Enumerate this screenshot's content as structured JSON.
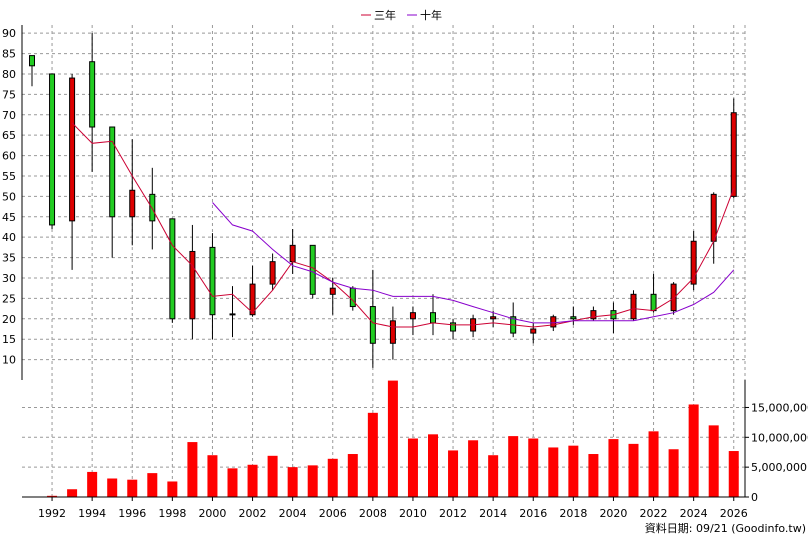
{
  "chart_data": {
    "type": "candlestick+bar",
    "legend": {
      "placement": "top-center",
      "items": [
        {
          "label": "三年",
          "color": "#cc0033"
        },
        {
          "label": "十年",
          "color": "#8800cc"
        }
      ]
    },
    "years": [
      1991,
      1992,
      1993,
      1994,
      1995,
      1996,
      1997,
      1998,
      1999,
      2000,
      2001,
      2002,
      2003,
      2004,
      2005,
      2006,
      2007,
      2008,
      2009,
      2010,
      2011,
      2012,
      2013,
      2014,
      2015,
      2016,
      2017,
      2018,
      2019,
      2020,
      2021,
      2022,
      2023,
      2024,
      2025,
      2026
    ],
    "price_axis": {
      "ticks": [
        10,
        15,
        20,
        25,
        30,
        35,
        40,
        45,
        50,
        55,
        60,
        65,
        70,
        75,
        80,
        85,
        90
      ],
      "range": [
        5,
        92
      ]
    },
    "volume_axis": {
      "ticks": [
        "0",
        "5,000,000",
        "10,000,000",
        "15,000,000"
      ],
      "tick_values": [
        0,
        5000000,
        10000000,
        15000000
      ],
      "range": [
        0,
        19600000
      ]
    },
    "x_tick_labels": [
      "1992",
      "1994",
      "1996",
      "1998",
      "2000",
      "2002",
      "2004",
      "2006",
      "2008",
      "2010",
      "2012",
      "2014",
      "2016",
      "2018",
      "2020",
      "2022",
      "2024",
      "2026"
    ],
    "candles": [
      {
        "year": 1991,
        "open": 82,
        "close": 84.5,
        "high": 84.5,
        "low": 77
      },
      {
        "year": 1992,
        "open": 43,
        "close": 80,
        "high": 80,
        "low": 42
      },
      {
        "year": 1993,
        "open": 79,
        "close": 44,
        "high": 80,
        "low": 32
      },
      {
        "year": 1994,
        "open": 67,
        "close": 83,
        "high": 90,
        "low": 56
      },
      {
        "year": 1995,
        "open": 45,
        "close": 67,
        "high": 67,
        "low": 35
      },
      {
        "year": 1996,
        "open": 51.5,
        "close": 45,
        "high": 64,
        "low": 38
      },
      {
        "year": 1997,
        "open": 44,
        "close": 50.5,
        "high": 57,
        "low": 37
      },
      {
        "year": 1998,
        "open": 20,
        "close": 44.5,
        "high": 44.5,
        "low": 19
      },
      {
        "year": 1999,
        "open": 36.5,
        "close": 20,
        "high": 43,
        "low": 15
      },
      {
        "year": 2000,
        "open": 21,
        "close": 37.5,
        "high": 41,
        "low": 15
      },
      {
        "year": 2001,
        "open": 21.2,
        "close": 21,
        "high": 28,
        "low": 15.5
      },
      {
        "year": 2002,
        "open": 28.5,
        "close": 21,
        "high": 33,
        "low": 20.5
      },
      {
        "year": 2003,
        "open": 34,
        "close": 28.5,
        "high": 36,
        "low": 27
      },
      {
        "year": 2004,
        "open": 38,
        "close": 34,
        "high": 42,
        "low": 31
      },
      {
        "year": 2005,
        "open": 26,
        "close": 38,
        "high": 38,
        "low": 25
      },
      {
        "year": 2006,
        "open": 27.5,
        "close": 26,
        "high": 30,
        "low": 21
      },
      {
        "year": 2007,
        "open": 23,
        "close": 27.5,
        "high": 28,
        "low": 22
      },
      {
        "year": 2008,
        "open": 14,
        "close": 23,
        "high": 32,
        "low": 8
      },
      {
        "year": 2009,
        "open": 19.5,
        "close": 14,
        "high": 23,
        "low": 10
      },
      {
        "year": 2010,
        "open": 21.5,
        "close": 20,
        "high": 23,
        "low": 16
      },
      {
        "year": 2011,
        "open": 19,
        "close": 21.5,
        "high": 26,
        "low": 16
      },
      {
        "year": 2012,
        "open": 17,
        "close": 19,
        "high": 20,
        "low": 15
      },
      {
        "year": 2013,
        "open": 20,
        "close": 17,
        "high": 21,
        "low": 15.5
      },
      {
        "year": 2014,
        "open": 20.5,
        "close": 20,
        "high": 22,
        "low": 18
      },
      {
        "year": 2015,
        "open": 16.5,
        "close": 20.5,
        "high": 24,
        "low": 15.5
      },
      {
        "year": 2016,
        "open": 17.5,
        "close": 16.5,
        "high": 19,
        "low": 14
      },
      {
        "year": 2017,
        "open": 20.5,
        "close": 18,
        "high": 21,
        "low": 17
      },
      {
        "year": 2018,
        "open": 20,
        "close": 20.5,
        "high": 23,
        "low": 18.5
      },
      {
        "year": 2019,
        "open": 22,
        "close": 20,
        "high": 23,
        "low": 19.5
      },
      {
        "year": 2020,
        "open": 20,
        "close": 22,
        "high": 24,
        "low": 16.5
      },
      {
        "year": 2021,
        "open": 26,
        "close": 20,
        "high": 27,
        "low": 19.5
      },
      {
        "year": 2022,
        "open": 22,
        "close": 26,
        "high": 31,
        "low": 21.5
      },
      {
        "year": 2023,
        "open": 28.5,
        "close": 22,
        "high": 29,
        "low": 21
      },
      {
        "year": 2024,
        "open": 39,
        "close": 28.5,
        "high": 41.5,
        "low": 27
      },
      {
        "year": 2025,
        "open": 50.5,
        "close": 39,
        "high": 51,
        "low": 33.5
      },
      {
        "year": 2026,
        "open": 70.5,
        "close": 50,
        "high": 74,
        "low": 49.5
      }
    ],
    "three_year_line": [
      {
        "year": 1992,
        "value": null
      },
      {
        "year": 1993,
        "value": 68
      },
      {
        "year": 1994,
        "value": 63
      },
      {
        "year": 1995,
        "value": 63.5
      },
      {
        "year": 1996,
        "value": 55
      },
      {
        "year": 1997,
        "value": 47
      },
      {
        "year": 1998,
        "value": 38
      },
      {
        "year": 1999,
        "value": 33
      },
      {
        "year": 2000,
        "value": 25.5
      },
      {
        "year": 2001,
        "value": 26
      },
      {
        "year": 2002,
        "value": 21.5
      },
      {
        "year": 2003,
        "value": 27
      },
      {
        "year": 2004,
        "value": 34
      },
      {
        "year": 2005,
        "value": 32.5
      },
      {
        "year": 2006,
        "value": 29
      },
      {
        "year": 2007,
        "value": 24.5
      },
      {
        "year": 2008,
        "value": 19
      },
      {
        "year": 2009,
        "value": 18
      },
      {
        "year": 2010,
        "value": 18
      },
      {
        "year": 2011,
        "value": 19
      },
      {
        "year": 2012,
        "value": 18.5
      },
      {
        "year": 2013,
        "value": 18.5
      },
      {
        "year": 2014,
        "value": 19
      },
      {
        "year": 2015,
        "value": 18.5
      },
      {
        "year": 2016,
        "value": 18
      },
      {
        "year": 2017,
        "value": 18.5
      },
      {
        "year": 2018,
        "value": 19.5
      },
      {
        "year": 2019,
        "value": 20.5
      },
      {
        "year": 2020,
        "value": 21
      },
      {
        "year": 2021,
        "value": 22.5
      },
      {
        "year": 2022,
        "value": 22
      },
      {
        "year": 2023,
        "value": 25
      },
      {
        "year": 2024,
        "value": 30
      },
      {
        "year": 2025,
        "value": 39
      },
      {
        "year": 2026,
        "value": 52
      }
    ],
    "ten_year_line": [
      {
        "year": 2000,
        "value": 48.5
      },
      {
        "year": 2001,
        "value": 43
      },
      {
        "year": 2002,
        "value": 41.5
      },
      {
        "year": 2003,
        "value": 37
      },
      {
        "year": 2004,
        "value": 33
      },
      {
        "year": 2005,
        "value": 31.5
      },
      {
        "year": 2006,
        "value": 29
      },
      {
        "year": 2007,
        "value": 27.5
      },
      {
        "year": 2008,
        "value": 27
      },
      {
        "year": 2009,
        "value": 25.5
      },
      {
        "year": 2010,
        "value": 25.5
      },
      {
        "year": 2011,
        "value": 25.5
      },
      {
        "year": 2012,
        "value": 24.5
      },
      {
        "year": 2013,
        "value": 23
      },
      {
        "year": 2014,
        "value": 21.5
      },
      {
        "year": 2015,
        "value": 20
      },
      {
        "year": 2016,
        "value": 19
      },
      {
        "year": 2017,
        "value": 19
      },
      {
        "year": 2018,
        "value": 19.5
      },
      {
        "year": 2019,
        "value": 19.5
      },
      {
        "year": 2020,
        "value": 19.5
      },
      {
        "year": 2021,
        "value": 19.5
      },
      {
        "year": 2022,
        "value": 20.5
      },
      {
        "year": 2023,
        "value": 21.5
      },
      {
        "year": 2024,
        "value": 23.5
      },
      {
        "year": 2025,
        "value": 26.5
      },
      {
        "year": 2026,
        "value": 32
      }
    ],
    "volume": [
      {
        "year": 1991,
        "value": 0
      },
      {
        "year": 1992,
        "value": 200000
      },
      {
        "year": 1993,
        "value": 1300000
      },
      {
        "year": 1994,
        "value": 4200000
      },
      {
        "year": 1995,
        "value": 3100000
      },
      {
        "year": 1996,
        "value": 2900000
      },
      {
        "year": 1997,
        "value": 4000000
      },
      {
        "year": 1998,
        "value": 2600000
      },
      {
        "year": 1999,
        "value": 9200000
      },
      {
        "year": 2000,
        "value": 7000000
      },
      {
        "year": 2001,
        "value": 4800000
      },
      {
        "year": 2002,
        "value": 5400000
      },
      {
        "year": 2003,
        "value": 6900000
      },
      {
        "year": 2004,
        "value": 5000000
      },
      {
        "year": 2005,
        "value": 5300000
      },
      {
        "year": 2006,
        "value": 6400000
      },
      {
        "year": 2007,
        "value": 7200000
      },
      {
        "year": 2008,
        "value": 14100000
      },
      {
        "year": 2009,
        "value": 19500000
      },
      {
        "year": 2010,
        "value": 9800000
      },
      {
        "year": 2011,
        "value": 10500000
      },
      {
        "year": 2012,
        "value": 7800000
      },
      {
        "year": 2013,
        "value": 9500000
      },
      {
        "year": 2014,
        "value": 7000000
      },
      {
        "year": 2015,
        "value": 10200000
      },
      {
        "year": 2016,
        "value": 9800000
      },
      {
        "year": 2017,
        "value": 8300000
      },
      {
        "year": 2018,
        "value": 8600000
      },
      {
        "year": 2019,
        "value": 7200000
      },
      {
        "year": 2020,
        "value": 9700000
      },
      {
        "year": 2021,
        "value": 8900000
      },
      {
        "year": 2022,
        "value": 11000000
      },
      {
        "year": 2023,
        "value": 8000000
      },
      {
        "year": 2024,
        "value": 15500000
      },
      {
        "year": 2025,
        "value": 12000000
      },
      {
        "year": 2026,
        "value": 7700000
      }
    ],
    "grid": true,
    "source_note": "資料日期: 09/21  (Goodinfo.tw)"
  },
  "colors": {
    "up_candle": "#22cc22",
    "down_candle": "#dd0000",
    "volume_bar": "#ff0000",
    "grid": "#999999",
    "three_year": "#cc0033",
    "ten_year": "#8800cc"
  }
}
